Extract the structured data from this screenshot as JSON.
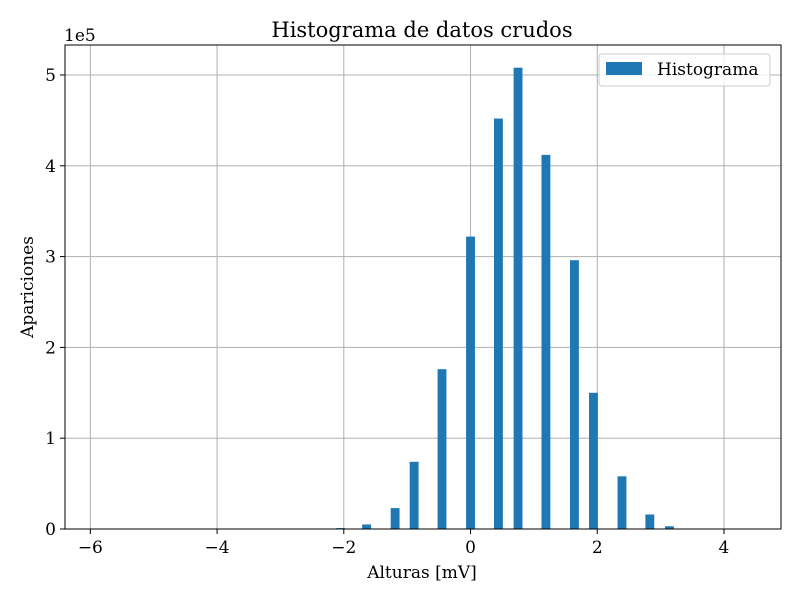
{
  "chart_data": {
    "type": "bar",
    "title": "Histograma de datos crudos",
    "xlabel": "Alturas [mV]",
    "ylabel": "Apariciones",
    "y_offset_label": "1e5",
    "xlim": [
      -6.4,
      4.9
    ],
    "ylim": [
      0,
      5.33
    ],
    "y_scale_factor": 100000,
    "xticks": [
      -6,
      -4,
      -2,
      0,
      2,
      4
    ],
    "xtick_labels": [
      "−6",
      "−4",
      "−2",
      "0",
      "2",
      "4"
    ],
    "yticks": [
      0,
      1,
      2,
      3,
      4,
      5
    ],
    "ytick_labels": [
      "0",
      "1",
      "2",
      "3",
      "4",
      "5"
    ],
    "grid": true,
    "legend_position": "top-right",
    "series": [
      {
        "name": "Histograma",
        "color": "#1f77b4",
        "bar_width": 0.14,
        "x": [
          -6.0,
          -2.05,
          -1.64,
          -1.19,
          -0.89,
          -0.45,
          0.0,
          0.44,
          0.75,
          1.19,
          1.64,
          1.94,
          2.39,
          2.83,
          3.14
        ],
        "values": [
          0.0,
          0.01,
          0.05,
          0.23,
          0.74,
          1.76,
          3.22,
          4.52,
          5.08,
          4.12,
          2.96,
          1.5,
          0.58,
          0.16,
          0.03
        ]
      }
    ]
  }
}
